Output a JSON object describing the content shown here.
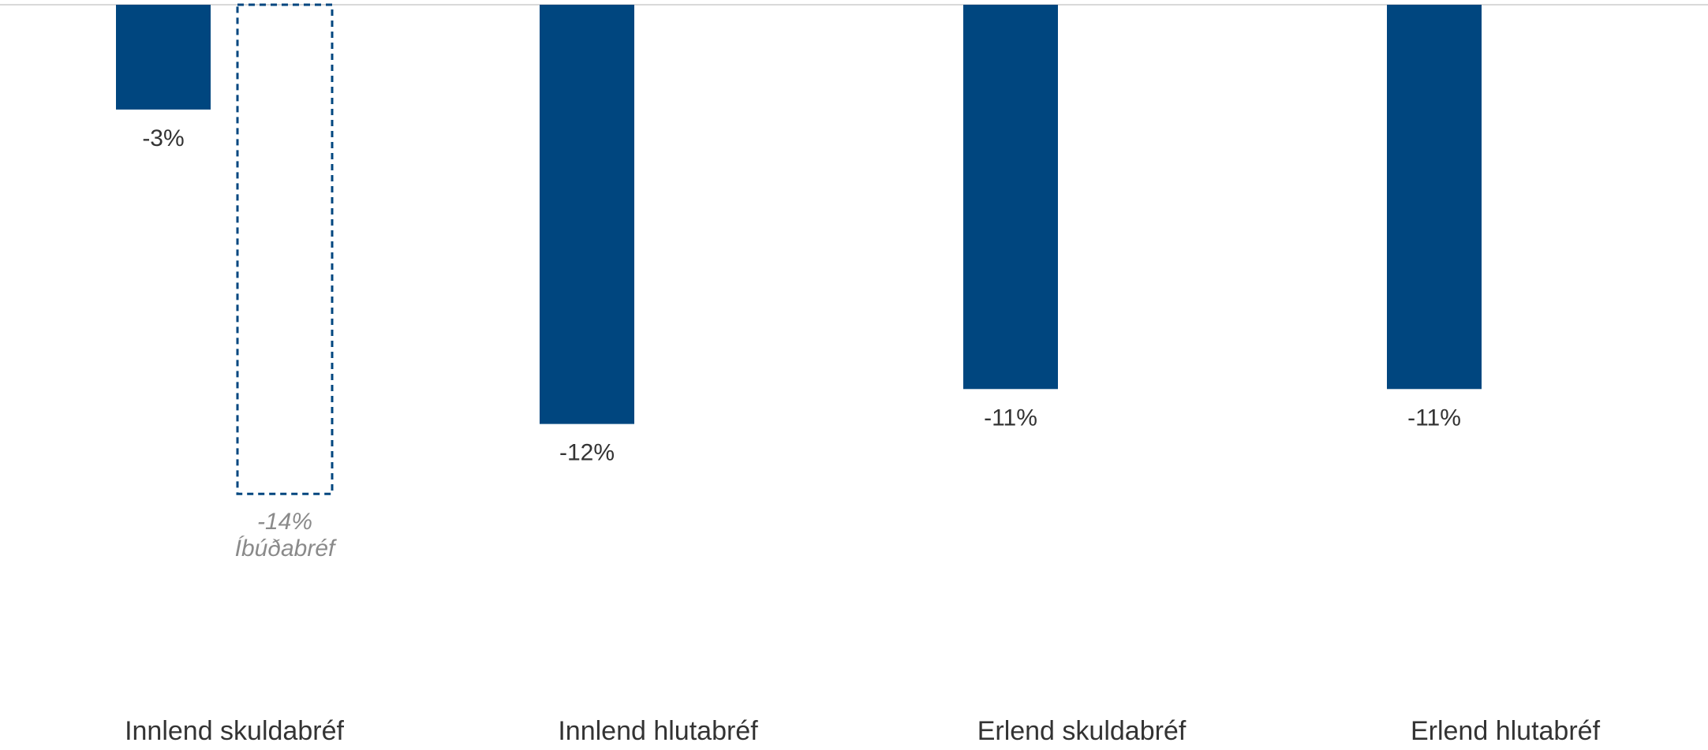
{
  "chart_data": {
    "type": "bar",
    "categories": [
      "Innlend skuldabréf",
      "Innlend hlutabréf",
      "Erlend skuldabréf",
      "Erlend hlutabréf"
    ],
    "series": [
      {
        "values": [
          -3,
          -12,
          -11,
          -11
        ],
        "labels": [
          "-3%",
          "-12%",
          "-11%",
          "-11%"
        ],
        "color": "#00467f"
      }
    ],
    "reference": {
      "category": "Innlend skuldabréf",
      "value": -14,
      "value_label": "-14%",
      "name": "Íbúðabréf",
      "style": "dashed-outline",
      "color": "#00467f"
    },
    "ylim": [
      -14,
      0
    ],
    "grid": false,
    "legend": "none"
  },
  "colors": {
    "bar": "#00467f",
    "axis_line": "#d9d9d9",
    "text": "#333333",
    "ref_text": "#8a8a8a"
  }
}
